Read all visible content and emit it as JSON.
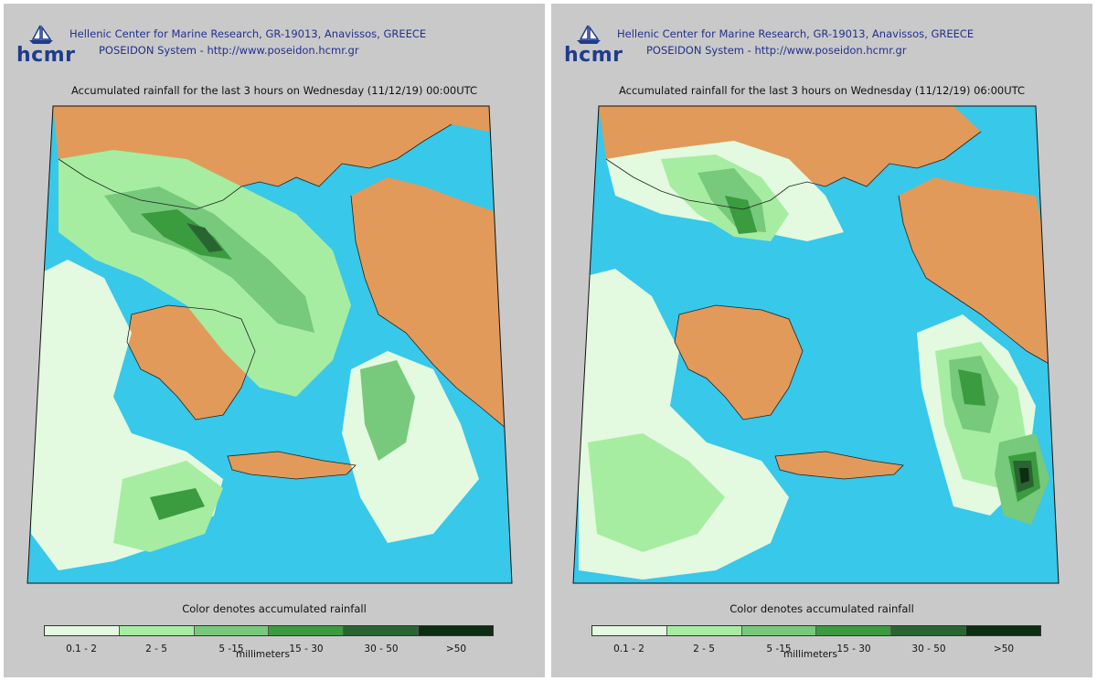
{
  "header": {
    "logo_text": "hcmr",
    "line1": "Hellenic Center for Marine Research, GR-19013, Anavissos, GREECE",
    "line2": "POSEIDON System - http://www.poseidon.hcmr.gr"
  },
  "panels": [
    {
      "title": "Accumulated rainfall for the last 3 hours on Wednesday (11/12/19) 00:00UTC"
    },
    {
      "title": "Accumulated rainfall for the last 3 hours on Wednesday (11/12/19) 06:00UTC"
    }
  ],
  "legend": {
    "title": "Color denotes accumulated rainfall",
    "units": "millimeters",
    "classes": [
      {
        "label": "0.1 - 2",
        "color": "#e3f9e0"
      },
      {
        "label": "2 - 5",
        "color": "#a6eda1"
      },
      {
        "label": "5 -15",
        "color": "#77c97b"
      },
      {
        "label": "15 - 30",
        "color": "#3a9c3f"
      },
      {
        "label": "30 - 50",
        "color": "#2a6531"
      },
      {
        "label": ">50",
        "color": "#0d2e12"
      }
    ]
  },
  "colors": {
    "sea": "#37c8ea",
    "land": "#e19a5a",
    "panel_bg": "#c9c9c9",
    "logo": "#1f3c8c"
  }
}
